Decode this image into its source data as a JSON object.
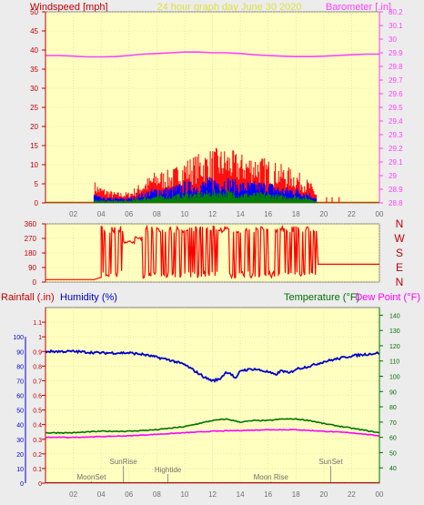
{
  "header": {
    "left_label": "Windspeed [mph]",
    "center_title": "24 hour graph day   June 30 2020",
    "right_label": "Barometer [.in]"
  },
  "bottom_header": {
    "rain_label": "Rainfall (.in)",
    "humidity_label": "Humidity (%)",
    "temp_label": "Temperature (°F)",
    "dew_label": "Dew Point (°F)"
  },
  "compass": [
    "N",
    "W",
    "S",
    "E",
    "N"
  ],
  "colors": {
    "plot_bg": "#ffffc0",
    "wind_color": "#ff0000",
    "baro_color": "#ff40ff",
    "humidity_color": "#0000c8",
    "temp_color": "#007000",
    "dew_color": "#ff00ff",
    "grey_text": "#707070",
    "center_title_color": "#e0e040",
    "axis_color": "#c00000"
  },
  "chart_data": [
    {
      "type": "line",
      "name": "wind-barometer",
      "x_ticks": [
        "02",
        "04",
        "06",
        "08",
        "10",
        "12",
        "14",
        "16",
        "18",
        "20",
        "22",
        "00"
      ],
      "xlim": [
        0,
        24
      ],
      "wind_ylim": [
        0,
        50
      ],
      "wind_ticks": [
        "0",
        "5",
        "10",
        "15",
        "20",
        "25",
        "30",
        "35",
        "40",
        "45",
        "50"
      ],
      "baro_ylim": [
        28.8,
        30.2
      ],
      "baro_ticks": [
        "28.8",
        "28.9",
        "29",
        "29.1",
        "29.2",
        "29.3",
        "29.4",
        "29.5",
        "29.6",
        "29.7",
        "29.8",
        "29.9",
        "30",
        "30.1",
        "30.2"
      ],
      "series": [
        {
          "key": "barometer",
          "x": [
            0,
            1,
            2,
            3,
            4,
            5,
            6,
            7,
            8,
            9,
            10,
            11,
            12,
            13,
            14,
            15,
            16,
            17,
            18,
            19,
            20,
            21,
            22,
            23,
            24
          ],
          "y": [
            29.88,
            29.88,
            29.875,
            29.87,
            29.87,
            29.872,
            29.88,
            29.89,
            29.895,
            29.9,
            29.905,
            29.905,
            29.9,
            29.9,
            29.895,
            29.885,
            29.88,
            29.875,
            29.872,
            29.872,
            29.875,
            29.88,
            29.885,
            29.89,
            29.89
          ]
        },
        {
          "key": "gust",
          "x": [
            3.5,
            4,
            5,
            6,
            7,
            8,
            9,
            10,
            11,
            12,
            13,
            14,
            15,
            16,
            17,
            18,
            19,
            19.5
          ],
          "y": [
            4,
            3,
            2,
            2,
            4,
            6,
            6,
            8,
            9,
            10,
            10,
            9,
            9,
            8,
            7,
            6,
            4,
            2
          ]
        },
        {
          "key": "speed",
          "x": [
            3.5,
            4,
            5,
            6,
            7,
            8,
            9,
            10,
            11,
            12,
            13,
            14,
            15,
            16,
            17,
            18,
            19,
            19.5
          ],
          "y": [
            2,
            1,
            1,
            1,
            2,
            3,
            3,
            4,
            4,
            5,
            5,
            4,
            4,
            4,
            3,
            3,
            2,
            1
          ]
        },
        {
          "key": "average",
          "x": [
            3.5,
            4,
            5,
            6,
            7,
            8,
            9,
            10,
            11,
            12,
            13,
            14,
            15,
            16,
            17,
            18,
            19,
            19.5
          ],
          "y": [
            0.5,
            0.5,
            0.5,
            0.5,
            1,
            1.5,
            1.5,
            2,
            2,
            2.5,
            2.5,
            2,
            2,
            2,
            1.5,
            1.5,
            1,
            0.5
          ]
        }
      ]
    },
    {
      "type": "line",
      "name": "wind-direction",
      "xlim": [
        0,
        24
      ],
      "ylim": [
        0,
        360
      ],
      "y_ticks": [
        "0",
        "90",
        "180",
        "270",
        "360"
      ],
      "series": [
        {
          "key": "direction",
          "x": [
            0,
            3.5,
            4.0,
            4.2,
            5.5,
            6.0,
            6.5,
            7.0,
            19.5,
            20.0,
            24.0
          ],
          "y": [
            15,
            15,
            30,
            250,
            30,
            250,
            275,
            340,
            200,
            110,
            110
          ]
        }
      ]
    },
    {
      "type": "line",
      "name": "rain-humidity-temperature",
      "x_ticks": [
        "02",
        "04",
        "06",
        "08",
        "10",
        "12",
        "14",
        "16",
        "18",
        "20",
        "22",
        "00"
      ],
      "xlim": [
        0,
        24
      ],
      "left_ylim": [
        0,
        1.2
      ],
      "left_ticks": [
        "0",
        "0.1",
        "0.2",
        "0.3",
        "0.4",
        "0.5",
        "0.6",
        "0.7",
        "0.8",
        "0.9",
        "1",
        "1.1"
      ],
      "humidity_ticks": [
        "0",
        "10",
        "20",
        "30",
        "40",
        "50",
        "60",
        "70",
        "80",
        "90",
        "100"
      ],
      "right_ylim": [
        30,
        145
      ],
      "right_ticks": [
        "40",
        "50",
        "60",
        "70",
        "80",
        "90",
        "100",
        "110",
        "120",
        "130",
        "140"
      ],
      "events": [
        {
          "label": "MoonSet",
          "x": 3.3
        },
        {
          "label": "SunRise",
          "x": 5.6
        },
        {
          "label": "Hightide",
          "x": 8.8
        },
        {
          "label": "Moon Rise",
          "x": 16.2
        },
        {
          "label": "SunSet",
          "x": 20.5
        }
      ],
      "series": [
        {
          "key": "humidity",
          "x": [
            0,
            2,
            4,
            6,
            7,
            8,
            9,
            10,
            10.5,
            11,
            11.5,
            12,
            12.5,
            13,
            13.3,
            13.7,
            14,
            15,
            16,
            16.5,
            17,
            17.5,
            18,
            19,
            20,
            21,
            22,
            23,
            24
          ],
          "y": [
            90,
            90,
            89,
            89,
            88,
            86,
            84,
            81,
            78,
            75,
            72,
            70,
            71,
            76,
            75,
            71,
            77,
            78,
            76,
            74,
            77,
            75,
            78,
            80,
            83,
            85,
            87,
            88,
            89
          ]
        },
        {
          "key": "temperature",
          "x": [
            0,
            2,
            4,
            6,
            8,
            10,
            11,
            12,
            13,
            14,
            15,
            16,
            17,
            18,
            19,
            20,
            22,
            24
          ],
          "y": [
            63,
            63,
            64,
            64,
            65,
            67,
            69,
            71,
            72,
            70,
            71,
            71,
            72,
            72,
            71,
            69,
            66,
            63
          ]
        },
        {
          "key": "dew_point",
          "x": [
            0,
            2,
            4,
            6,
            8,
            10,
            12,
            14,
            16,
            18,
            20,
            22,
            24
          ],
          "y": [
            60,
            60,
            60.5,
            61,
            62,
            63,
            64,
            64.5,
            65,
            65,
            64,
            63,
            61
          ]
        },
        {
          "key": "rainfall",
          "x": [
            0,
            24
          ],
          "y": [
            0,
            0
          ]
        }
      ]
    }
  ]
}
